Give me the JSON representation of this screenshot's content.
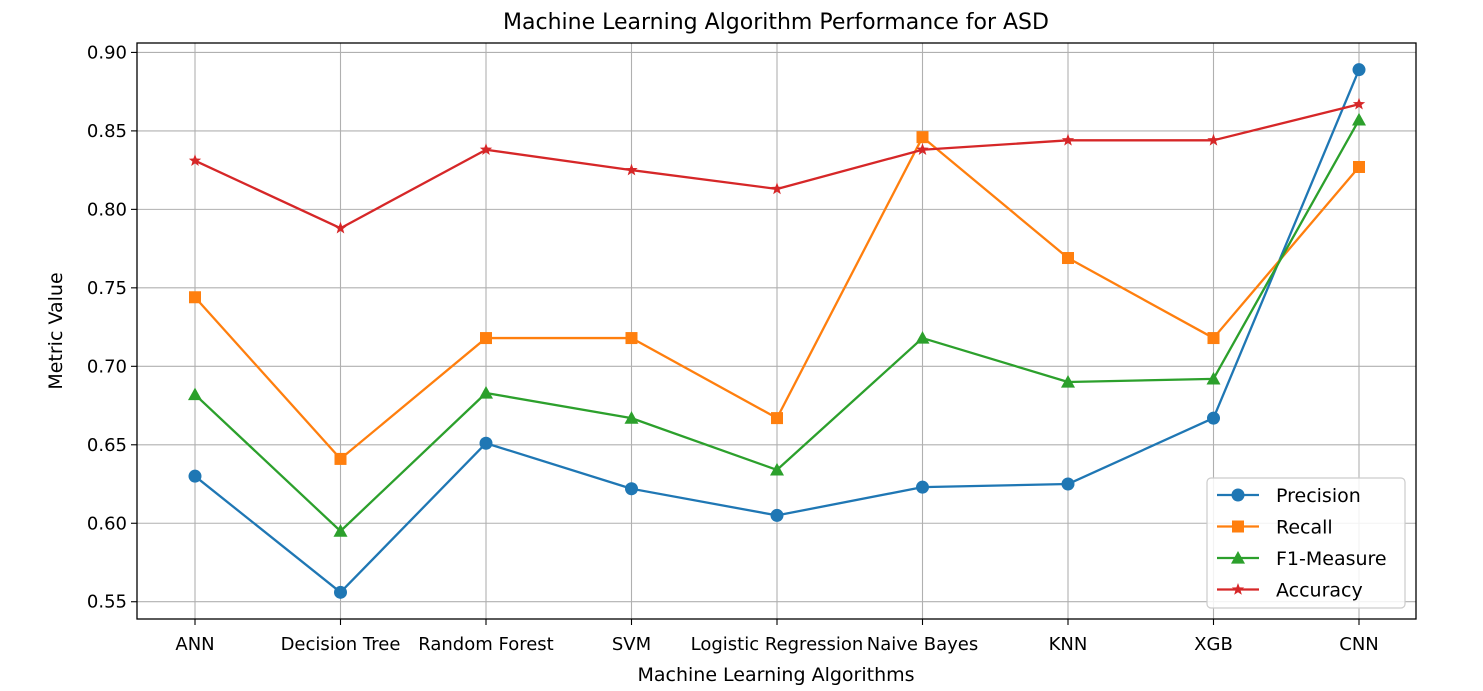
{
  "chart_data": {
    "type": "line",
    "title": "Machine Learning Algorithm Performance for ASD",
    "xlabel": "Machine Learning Algorithms",
    "ylabel": "Metric Value",
    "categories": [
      "ANN",
      "Decision Tree",
      "Random Forest",
      "SVM",
      "Logistic Regression",
      "Naive Bayes",
      "KNN",
      "XGB",
      "CNN"
    ],
    "ylim": [
      0.539,
      0.906
    ],
    "yticks": [
      "0.55",
      "0.60",
      "0.65",
      "0.70",
      "0.75",
      "0.80",
      "0.85",
      "0.90"
    ],
    "grid": true,
    "legend_position": "lower-right",
    "series": [
      {
        "name": "Precision",
        "color": "#1f77b4",
        "marker": "circle",
        "values": [
          0.63,
          0.556,
          0.651,
          0.622,
          0.605,
          0.623,
          0.625,
          0.667,
          0.889
        ]
      },
      {
        "name": "Recall",
        "color": "#ff7f0e",
        "marker": "square",
        "values": [
          0.744,
          0.641,
          0.718,
          0.718,
          0.667,
          0.846,
          0.769,
          0.718,
          0.827
        ]
      },
      {
        "name": "F1-Measure",
        "color": "#2ca02c",
        "marker": "triangle",
        "values": [
          0.682,
          0.595,
          0.683,
          0.667,
          0.634,
          0.718,
          0.69,
          0.692,
          0.857
        ]
      },
      {
        "name": "Accuracy",
        "color": "#d62728",
        "marker": "star",
        "values": [
          0.831,
          0.788,
          0.838,
          0.825,
          0.813,
          0.838,
          0.844,
          0.844,
          0.867
        ]
      }
    ]
  }
}
